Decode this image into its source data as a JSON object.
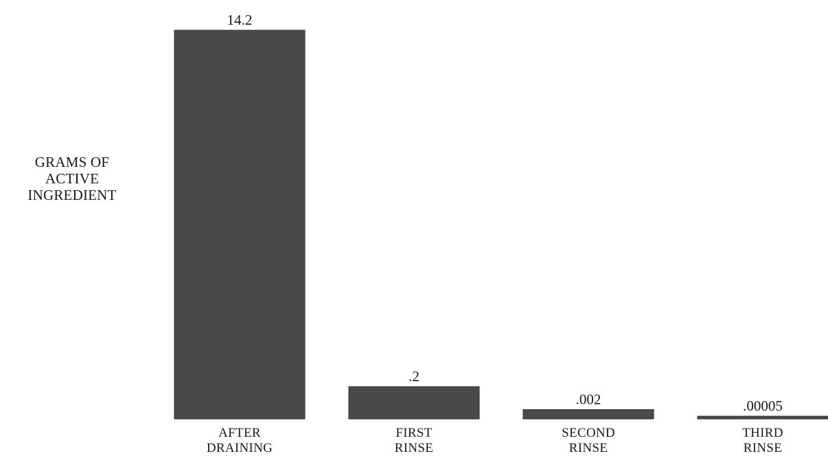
{
  "chart_data": {
    "type": "bar",
    "ylabel": [
      "GRAMS OF",
      "ACTIVE",
      "INGREDIENT"
    ],
    "categories": [
      [
        "AFTER",
        "DRAINING"
      ],
      [
        "FIRST",
        "RINSE"
      ],
      [
        "SECOND",
        "RINSE"
      ],
      [
        "THIRD",
        "RINSE"
      ]
    ],
    "values": [
      14.2,
      0.2,
      0.002,
      5e-05
    ],
    "value_labels": [
      "14.2",
      ".2",
      ".002",
      ".00005"
    ],
    "display_fill": [
      1.0,
      0.083,
      0.024,
      0.007
    ],
    "bar_color": "#4a4a4a",
    "grid": false,
    "legend": "none"
  }
}
